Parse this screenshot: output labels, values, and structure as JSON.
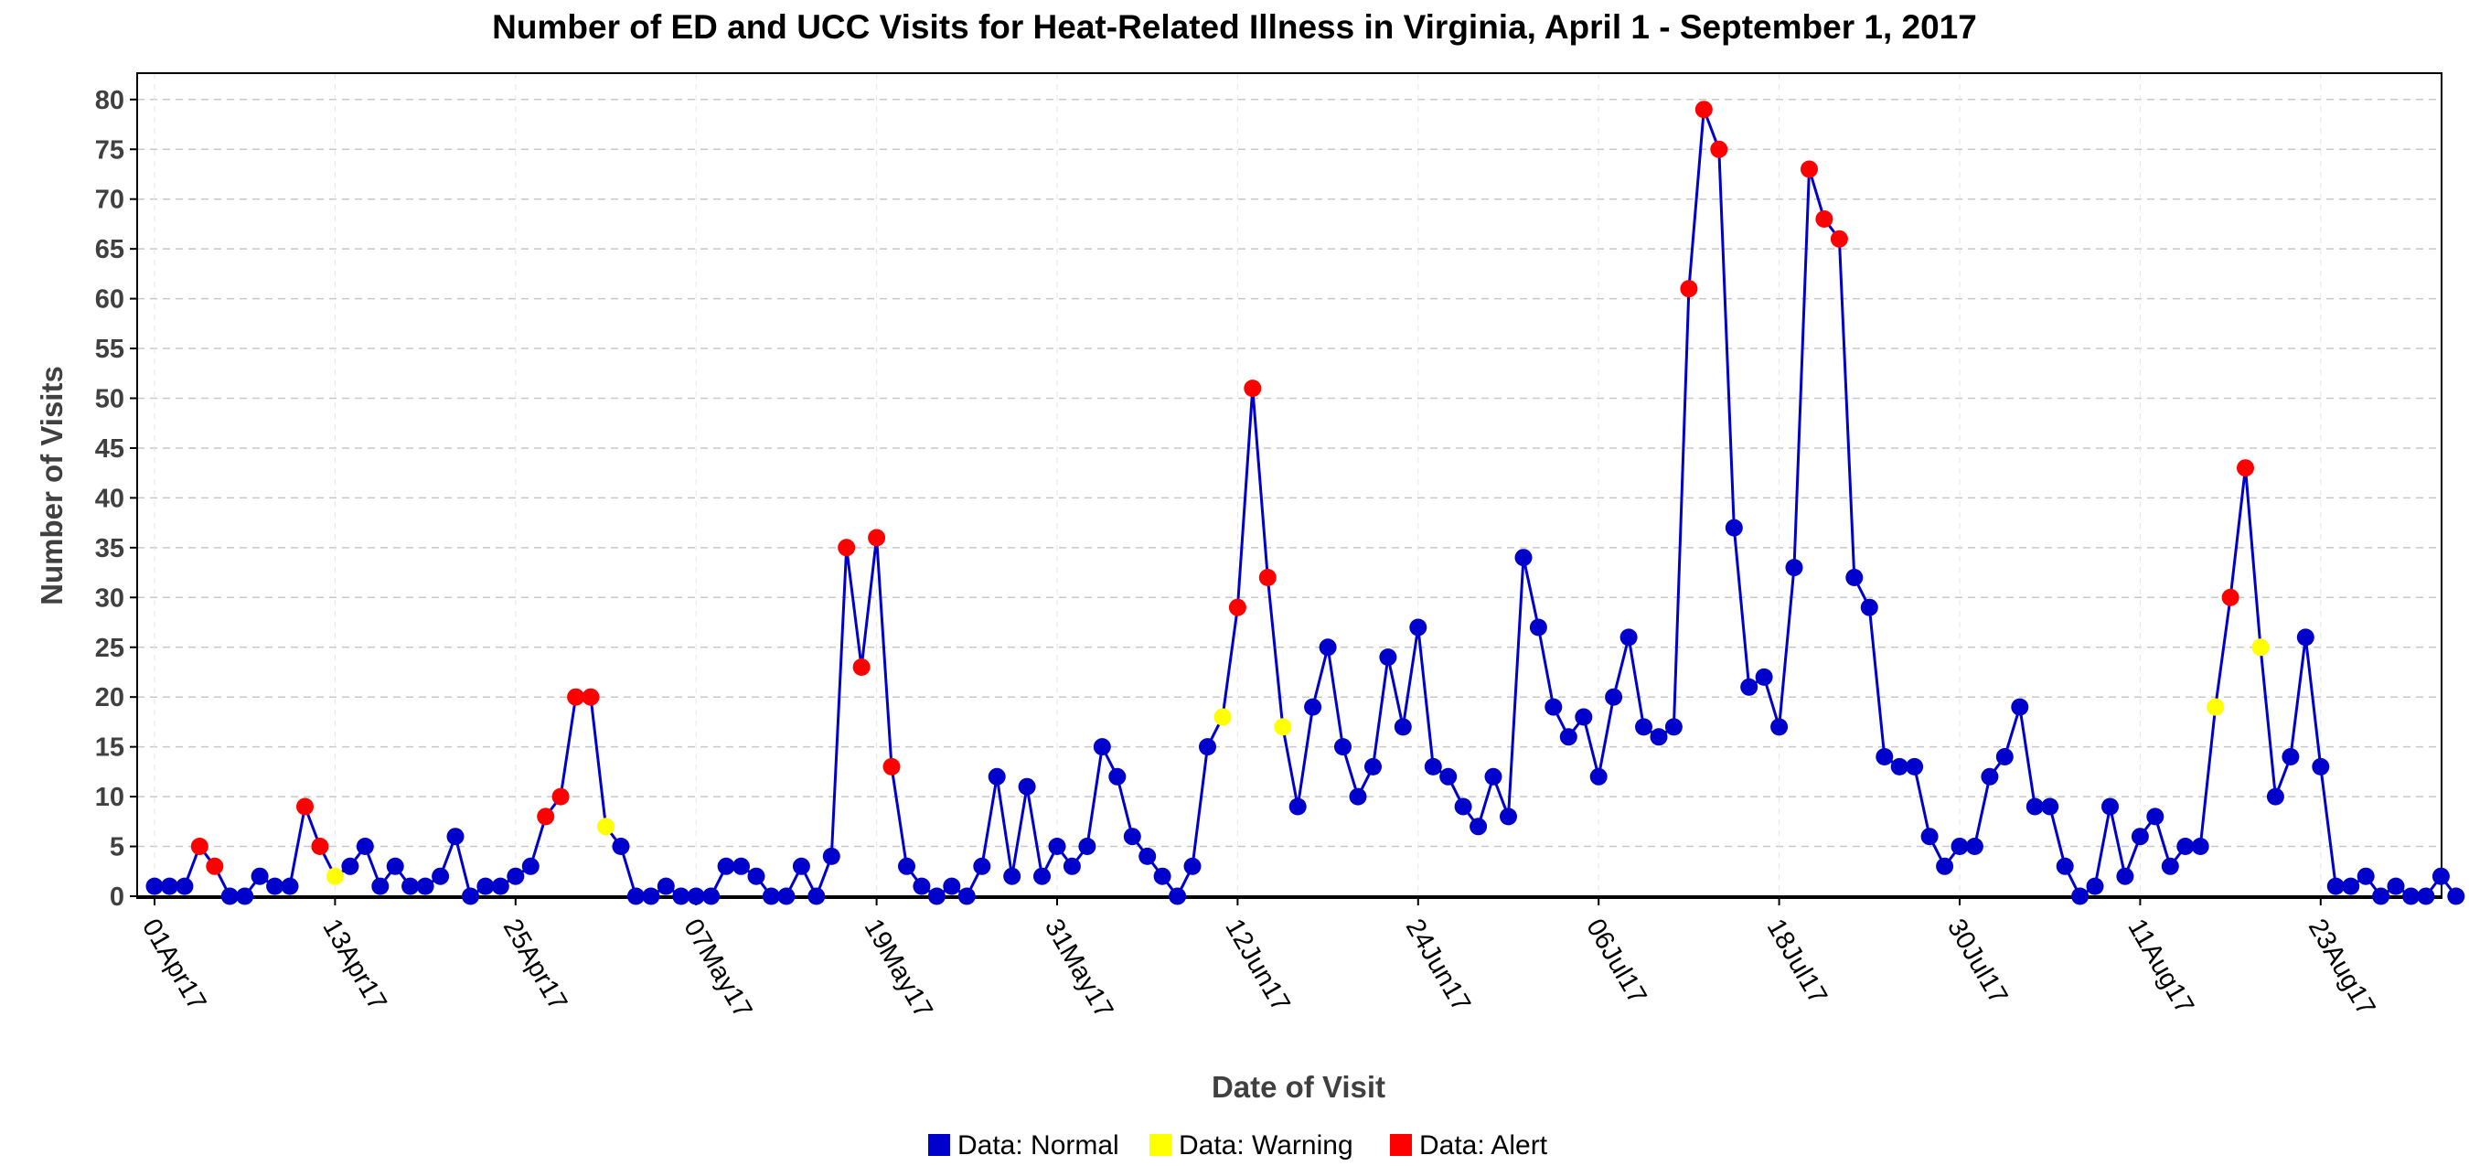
{
  "colors": {
    "normal": "#0000CC",
    "warning": "#FFFF00",
    "alert": "#FF0000",
    "line": "#0000CC",
    "grid": "#C8C8C8"
  },
  "chart_data": {
    "type": "line",
    "title": "Number of ED and UCC Visits for Heat-Related Illness in Virginia, April 1 - September 1, 2017",
    "xlabel": "Date of Visit",
    "ylabel": "Number of Visits",
    "ylim": [
      0,
      80
    ],
    "yticks": [
      0,
      5,
      10,
      15,
      20,
      25,
      30,
      35,
      40,
      45,
      50,
      55,
      60,
      65,
      70,
      75,
      80
    ],
    "x_start": "2017-04-01",
    "x_end": "2017-09-01",
    "xtick_labels": [
      "01Apr17",
      "13Apr17",
      "25Apr17",
      "07May17",
      "19May17",
      "31May17",
      "12Jun17",
      "24Jun17",
      "06Jul17",
      "18Jul17",
      "30Jul17",
      "11Aug17",
      "23Aug17"
    ],
    "grid": true,
    "legend_position": "bottom",
    "legend": [
      {
        "key": "normal",
        "label": "Data: Normal"
      },
      {
        "key": "warning",
        "label": "Data: Warning"
      },
      {
        "key": "alert",
        "label": "Data: Alert"
      }
    ],
    "series": [
      {
        "values": [
          1,
          1,
          1,
          5,
          3,
          0,
          0,
          2,
          1,
          1,
          9,
          5,
          2,
          3,
          5,
          1,
          3,
          1,
          1,
          2,
          6,
          0,
          1,
          1,
          2,
          3,
          8,
          10,
          20,
          20,
          7,
          5,
          0,
          0,
          1,
          0,
          0,
          0,
          3,
          3,
          2,
          0,
          0,
          3,
          0,
          4,
          35,
          23,
          36,
          13,
          3,
          1,
          0,
          1,
          0,
          3,
          12,
          2,
          11,
          2,
          5,
          3,
          5,
          15,
          12,
          6,
          4,
          2,
          0,
          3,
          15,
          18,
          29,
          51,
          32,
          17,
          9,
          19,
          25,
          15,
          10,
          13,
          24,
          17,
          27,
          13,
          12,
          9,
          7,
          12,
          8,
          34,
          27,
          19,
          16,
          18,
          12,
          20,
          26,
          17,
          16,
          17,
          61,
          79,
          75,
          37,
          21,
          22,
          17,
          33,
          73,
          68,
          66,
          32,
          29,
          14,
          13,
          13,
          6,
          3,
          5,
          5,
          12,
          14,
          19,
          9,
          9,
          3,
          0,
          1,
          9,
          2,
          6,
          8,
          3,
          5,
          5,
          19,
          30,
          43,
          25,
          10,
          14,
          26,
          13,
          1,
          1,
          2,
          0,
          1,
          0,
          0,
          2,
          0
        ],
        "status": [
          "N",
          "N",
          "N",
          "A",
          "A",
          "N",
          "N",
          "N",
          "N",
          "N",
          "A",
          "A",
          "W",
          "N",
          "N",
          "N",
          "N",
          "N",
          "N",
          "N",
          "N",
          "N",
          "N",
          "N",
          "N",
          "N",
          "A",
          "A",
          "A",
          "A",
          "W",
          "N",
          "N",
          "N",
          "N",
          "N",
          "N",
          "N",
          "N",
          "N",
          "N",
          "N",
          "N",
          "N",
          "N",
          "N",
          "A",
          "A",
          "A",
          "A",
          "N",
          "N",
          "N",
          "N",
          "N",
          "N",
          "N",
          "N",
          "N",
          "N",
          "N",
          "N",
          "N",
          "N",
          "N",
          "N",
          "N",
          "N",
          "N",
          "N",
          "N",
          "W",
          "A",
          "A",
          "A",
          "W",
          "N",
          "N",
          "N",
          "N",
          "N",
          "N",
          "N",
          "N",
          "N",
          "N",
          "N",
          "N",
          "N",
          "N",
          "N",
          "N",
          "N",
          "N",
          "N",
          "N",
          "N",
          "N",
          "N",
          "N",
          "N",
          "N",
          "A",
          "A",
          "A",
          "N",
          "N",
          "N",
          "N",
          "N",
          "A",
          "A",
          "A",
          "N",
          "N",
          "N",
          "N",
          "N",
          "N",
          "N",
          "N",
          "N",
          "N",
          "N",
          "N",
          "N",
          "N",
          "N",
          "N",
          "N",
          "N",
          "N",
          "N",
          "N",
          "N",
          "N",
          "N",
          "W",
          "A",
          "A",
          "W",
          "N",
          "N",
          "N",
          "N",
          "N",
          "N",
          "N",
          "N",
          "N",
          "N",
          "N",
          "N",
          "N"
        ]
      }
    ]
  }
}
